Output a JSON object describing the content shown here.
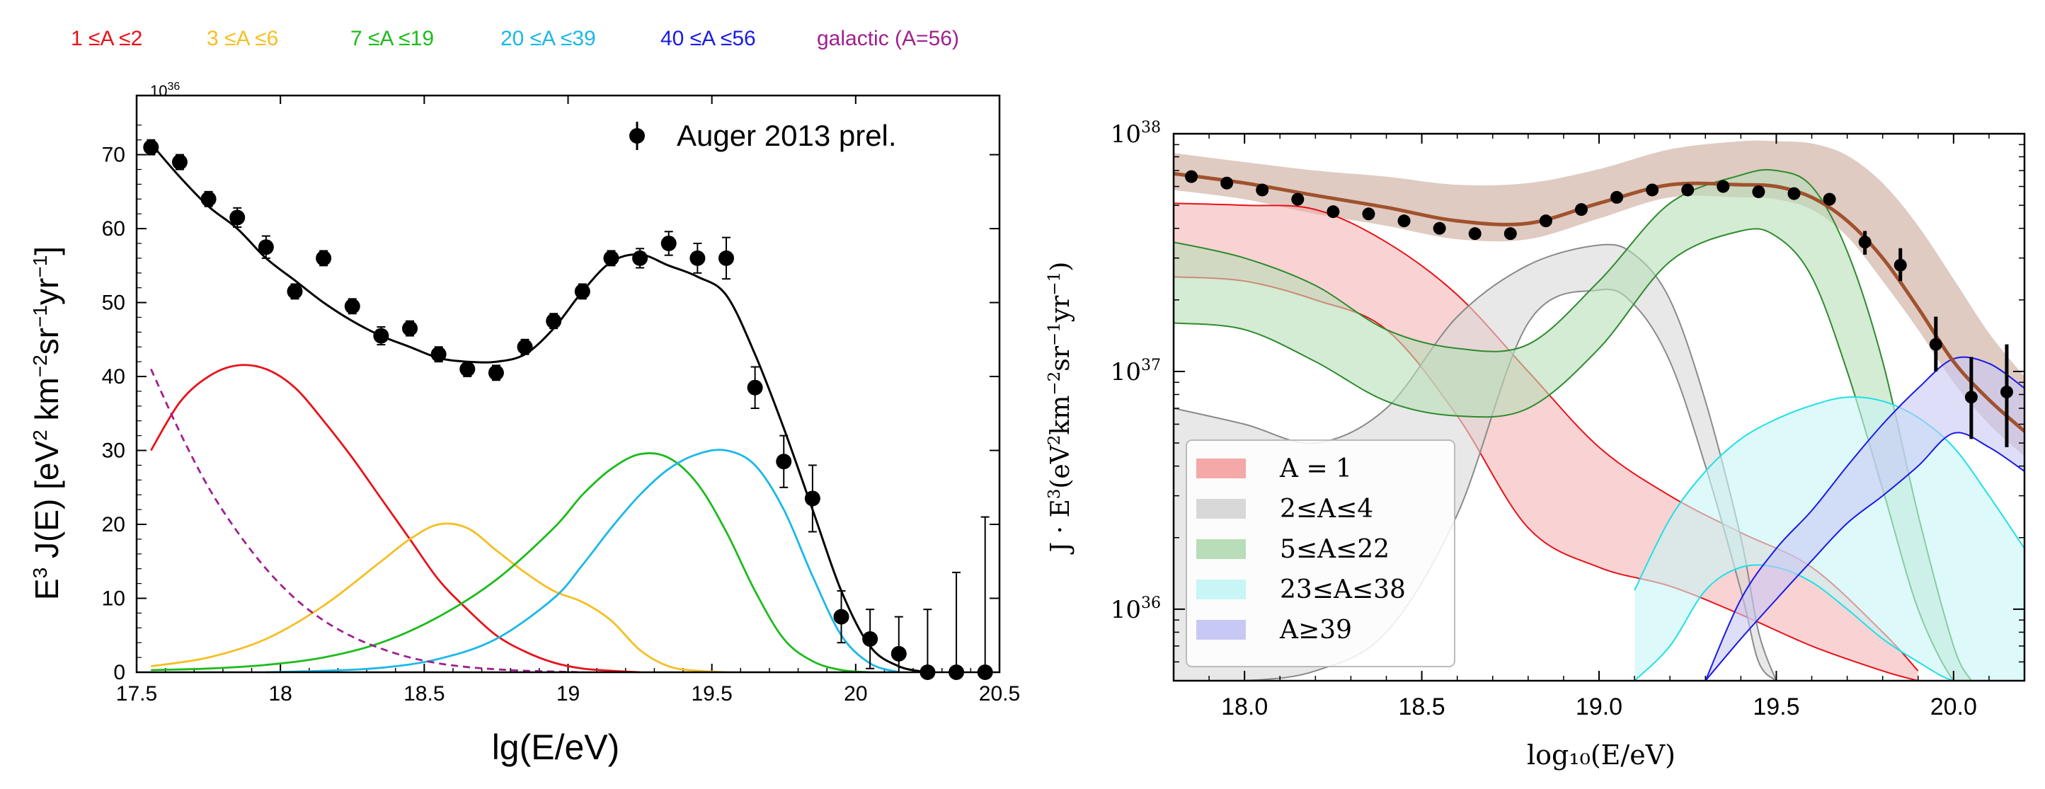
{
  "colors": {
    "red": "#e8121a",
    "yellow": "#f5bf22",
    "green": "#1dbb1d",
    "cyan": "#1cb8e8",
    "blue": "#1a1ae6",
    "purple": "#a0208e",
    "black": "#000000",
    "brown": "#a0522d"
  },
  "chart_data": [
    {
      "type": "line",
      "legend_top": [
        {
          "label": "1 ≤A ≤2",
          "color": "#e8121a"
        },
        {
          "label": "3 ≤A ≤6",
          "color": "#f5bf22"
        },
        {
          "label": "7 ≤A ≤19",
          "color": "#1dbb1d"
        },
        {
          "label": "20 ≤A ≤39",
          "color": "#1cb8e8"
        },
        {
          "label": "40 ≤A ≤56",
          "color": "#1a1ae6"
        },
        {
          "label": "galactic (A=56)",
          "color": "#a0208e"
        }
      ],
      "legend_in": "Auger 2013 prel.",
      "multiplier": "10",
      "multiplier_exp": "36",
      "ylabel": {
        "a": "E",
        "b": "3",
        "c": " J(E) [eV",
        "d": "2",
        "e": " km",
        "f": "−2",
        "g": "sr",
        "h": "−1",
        "i": "yr",
        "j": "−1",
        "k": "]"
      },
      "xlabel": "lg(E/eV)",
      "xlim": [
        17.5,
        20.5
      ],
      "ylim": [
        0,
        78
      ],
      "xticks": [
        17.5,
        18,
        18.5,
        19,
        19.5,
        20,
        20.5
      ],
      "xtick_labels": [
        "17.5",
        "18",
        "18.5",
        "19",
        "19.5",
        "20",
        "20.5"
      ],
      "yticks": [
        0,
        10,
        20,
        30,
        40,
        50,
        60,
        70
      ],
      "ytick_labels": [
        "0",
        "10",
        "20",
        "30",
        "40",
        "50",
        "60",
        "70"
      ],
      "data_points": [
        {
          "x": 17.55,
          "y": 71.0,
          "err": 1.0
        },
        {
          "x": 17.65,
          "y": 69.0,
          "err": 1.0
        },
        {
          "x": 17.75,
          "y": 64.0,
          "err": 1.0
        },
        {
          "x": 17.85,
          "y": 61.5,
          "err": 1.3
        },
        {
          "x": 17.95,
          "y": 57.5,
          "err": 1.5
        },
        {
          "x": 18.05,
          "y": 51.5,
          "err": 1.0
        },
        {
          "x": 18.15,
          "y": 56.0,
          "err": 1.0
        },
        {
          "x": 18.25,
          "y": 49.5,
          "err": 1.0
        },
        {
          "x": 18.35,
          "y": 45.5,
          "err": 1.2
        },
        {
          "x": 18.45,
          "y": 46.5,
          "err": 1.0
        },
        {
          "x": 18.55,
          "y": 43.0,
          "err": 1.0
        },
        {
          "x": 18.65,
          "y": 41.0,
          "err": 1.0
        },
        {
          "x": 18.75,
          "y": 40.5,
          "err": 1.0
        },
        {
          "x": 18.85,
          "y": 44.0,
          "err": 1.0
        },
        {
          "x": 18.95,
          "y": 47.5,
          "err": 1.0
        },
        {
          "x": 19.05,
          "y": 51.5,
          "err": 1.0
        },
        {
          "x": 19.15,
          "y": 56.0,
          "err": 1.0
        },
        {
          "x": 19.25,
          "y": 56.0,
          "err": 1.3
        },
        {
          "x": 19.35,
          "y": 58.0,
          "err": 1.6
        },
        {
          "x": 19.45,
          "y": 56.0,
          "err": 2.0
        },
        {
          "x": 19.55,
          "y": 56.0,
          "err": 2.8
        },
        {
          "x": 19.65,
          "y": 38.5,
          "err": 2.8
        },
        {
          "x": 19.75,
          "y": 28.5,
          "err": 3.5
        },
        {
          "x": 19.85,
          "y": 23.5,
          "err": 4.5
        },
        {
          "x": 19.95,
          "y": 7.5,
          "err": 3.5
        },
        {
          "x": 20.05,
          "y": 4.5,
          "err": 4.0
        },
        {
          "x": 20.15,
          "y": 2.5,
          "err": 5.0
        },
        {
          "x": 20.25,
          "y": 0.0,
          "err": 8.5
        },
        {
          "x": 20.35,
          "y": 0.0,
          "err": 13.5
        },
        {
          "x": 20.45,
          "y": 0.0,
          "err": 21.0
        }
      ],
      "series": [
        {
          "name": "total fit",
          "color": "#000000",
          "x": [
            17.55,
            17.65,
            17.75,
            17.85,
            17.95,
            18.05,
            18.15,
            18.25,
            18.35,
            18.45,
            18.55,
            18.65,
            18.75,
            18.85,
            18.95,
            19.05,
            19.15,
            19.25,
            19.35,
            19.45,
            19.55,
            19.65,
            19.75,
            19.85,
            19.95,
            20.05,
            20.15,
            20.25
          ],
          "y": [
            71.5,
            67.0,
            63.0,
            60.0,
            56.0,
            53.0,
            50.0,
            47.5,
            45.5,
            44.0,
            42.5,
            42.0,
            42.0,
            43.0,
            46.5,
            51.5,
            55.5,
            56.5,
            55.0,
            53.5,
            51.0,
            43.0,
            33.0,
            22.0,
            11.0,
            3.5,
            0.8,
            0.0
          ]
        },
        {
          "name": "1 ≤A ≤2",
          "color": "#e8121a",
          "x": [
            17.55,
            17.65,
            17.75,
            17.85,
            17.95,
            18.05,
            18.15,
            18.25,
            18.35,
            18.45,
            18.55,
            18.65,
            18.75,
            18.85,
            18.95,
            19.05,
            19.15,
            19.25
          ],
          "y": [
            30.0,
            36.5,
            40.0,
            41.5,
            41.0,
            38.5,
            34.0,
            29.0,
            23.5,
            18.0,
            12.5,
            8.5,
            5.0,
            2.8,
            1.3,
            0.5,
            0.2,
            0.0
          ]
        },
        {
          "name": "3 ≤A ≤6",
          "color": "#f5bf22",
          "x": [
            17.55,
            17.75,
            17.95,
            18.15,
            18.35,
            18.45,
            18.55,
            18.65,
            18.75,
            18.85,
            18.95,
            19.05,
            19.15,
            19.25,
            19.35,
            19.45,
            19.55
          ],
          "y": [
            0.8,
            2.0,
            4.5,
            9.0,
            15.0,
            18.0,
            20.0,
            19.5,
            16.5,
            13.5,
            11.0,
            9.5,
            7.0,
            3.0,
            0.8,
            0.2,
            0.0
          ]
        },
        {
          "name": "7 ≤A ≤19",
          "color": "#1dbb1d",
          "x": [
            17.55,
            17.75,
            17.95,
            18.15,
            18.35,
            18.55,
            18.75,
            18.95,
            19.05,
            19.15,
            19.25,
            19.35,
            19.45,
            19.55,
            19.65,
            19.75,
            19.85,
            19.95,
            20.05
          ],
          "y": [
            0.3,
            0.5,
            1.0,
            2.0,
            4.0,
            7.5,
            12.5,
            19.5,
            24.0,
            27.5,
            29.5,
            29.0,
            25.5,
            19.0,
            11.0,
            4.5,
            1.5,
            0.3,
            0.0
          ]
        },
        {
          "name": "20 ≤A ≤39",
          "color": "#1cb8e8",
          "x": [
            17.95,
            18.15,
            18.35,
            18.55,
            18.75,
            18.95,
            19.05,
            19.15,
            19.25,
            19.35,
            19.45,
            19.55,
            19.65,
            19.75,
            19.85,
            19.95,
            20.05,
            20.15
          ],
          "y": [
            0.0,
            0.2,
            0.6,
            1.8,
            4.5,
            10.0,
            14.5,
            19.5,
            24.0,
            27.5,
            29.5,
            30.0,
            28.0,
            22.0,
            13.0,
            5.0,
            1.2,
            0.0
          ]
        },
        {
          "name": "galactic (A=56)",
          "color": "#a0208e",
          "dashed": true,
          "x": [
            17.55,
            17.65,
            17.75,
            17.85,
            17.95,
            18.05,
            18.15,
            18.25,
            18.35,
            18.45,
            18.55,
            18.65,
            18.75,
            18.85,
            18.95,
            19.05
          ],
          "y": [
            41.0,
            32.5,
            25.0,
            19.0,
            14.0,
            10.0,
            7.0,
            4.8,
            3.2,
            2.0,
            1.2,
            0.7,
            0.4,
            0.2,
            0.1,
            0.0
          ]
        }
      ]
    },
    {
      "type": "line",
      "xlabel": "log₁₀(E/eV)",
      "ylabel": {
        "a": "J · E",
        "b": "3",
        "c": "(eV",
        "d": "2",
        "e": "km",
        "f": "−2",
        "g": "sr",
        "h": "−1",
        "i": "yr",
        "j": "−1",
        "k": ")"
      },
      "yscale": "log",
      "xlim": [
        17.8,
        20.2
      ],
      "ylim": [
        5e+35,
        1e+38
      ],
      "xticks": [
        18.0,
        18.5,
        19.0,
        19.5,
        20.0
      ],
      "xtick_labels": [
        "18.0",
        "18.5",
        "19.0",
        "19.5",
        "20.0"
      ],
      "ytick_labels": [
        {
          "base": "10",
          "exp": "36",
          "value": 1e+36
        },
        {
          "base": "10",
          "exp": "37",
          "value": 1e+37
        },
        {
          "base": "10",
          "exp": "38",
          "value": 1e+38
        }
      ],
      "legend": [
        {
          "label": "A = 1",
          "color": "#f08080"
        },
        {
          "label": "2≤A≤4",
          "color": "#9a9a9a"
        },
        {
          "label": "5≤A≤22",
          "color": "#2e8b2e"
        },
        {
          "label": "23≤A≤38",
          "color": "#40e0e0"
        },
        {
          "label": "A≥39",
          "color": "#6a6ae0"
        }
      ],
      "data_points": [
        {
          "x": 17.85,
          "y": 6.6e+37
        },
        {
          "x": 17.95,
          "y": 6.2e+37
        },
        {
          "x": 18.05,
          "y": 5.8e+37
        },
        {
          "x": 18.15,
          "y": 5.3e+37
        },
        {
          "x": 18.25,
          "y": 4.7e+37
        },
        {
          "x": 18.35,
          "y": 4.6e+37
        },
        {
          "x": 18.45,
          "y": 4.3e+37
        },
        {
          "x": 18.55,
          "y": 4e+37
        },
        {
          "x": 18.65,
          "y": 3.8e+37
        },
        {
          "x": 18.75,
          "y": 3.8e+37
        },
        {
          "x": 18.85,
          "y": 4.3e+37
        },
        {
          "x": 18.95,
          "y": 4.8e+37
        },
        {
          "x": 19.05,
          "y": 5.4e+37
        },
        {
          "x": 19.15,
          "y": 5.8e+37
        },
        {
          "x": 19.25,
          "y": 5.8e+37
        },
        {
          "x": 19.35,
          "y": 6e+37
        },
        {
          "x": 19.45,
          "y": 5.7e+37
        },
        {
          "x": 19.55,
          "y": 5.6e+37
        },
        {
          "x": 19.65,
          "y": 5.3e+37
        },
        {
          "x": 19.75,
          "y": 3.5e+37,
          "err": [
            3.1e+37,
            3.9e+37
          ]
        },
        {
          "x": 19.85,
          "y": 2.8e+37,
          "err": [
            2.4e+37,
            3.3e+37
          ]
        },
        {
          "x": 19.95,
          "y": 1.3e+37,
          "err": [
            1e+37,
            1.7e+37
          ]
        },
        {
          "x": 20.05,
          "y": 7.8e+36,
          "err": [
            5.2e+36,
            1.15e+37
          ]
        },
        {
          "x": 20.15,
          "y": 8.2e+36,
          "err": [
            4.8e+36,
            1.3e+37
          ]
        }
      ],
      "bands": [
        {
          "name": "total",
          "fill": "#c9a89a",
          "opacity": 0.6,
          "x": [
            17.8,
            18.0,
            18.2,
            18.4,
            18.6,
            18.8,
            19.0,
            19.2,
            19.4,
            19.5,
            19.6,
            19.7,
            19.8,
            19.9,
            20.0,
            20.1,
            20.2
          ],
          "lo": [
            5.8e+37,
            5.3e+37,
            4.6e+37,
            4.1e+37,
            3.6e+37,
            3.6e+37,
            4.4e+37,
            5.4e+37,
            5.4e+37,
            5.3e+37,
            4.8e+37,
            3.7e+37,
            2.4e+37,
            1.5e+37,
            9e+36,
            6e+36,
            4.4e+36
          ],
          "hi": [
            8.3e+37,
            7.6e+37,
            7e+37,
            6.6e+37,
            6.1e+37,
            6.2e+37,
            7.1e+37,
            8.6e+37,
            9.3e+37,
            9.3e+37,
            9.1e+37,
            8.1e+37,
            6.2e+37,
            4.1e+37,
            2.45e+37,
            1.45e+37,
            9.5e+36
          ]
        },
        {
          "name": "A = 1",
          "fill": "#f4a8a8",
          "stroke": "#e8121a",
          "opacity": 0.5,
          "x": [
            17.8,
            18.0,
            18.2,
            18.4,
            18.6,
            18.8,
            19.0,
            19.2,
            19.4,
            19.6,
            19.8,
            19.9
          ],
          "lo": [
            2.5e+37,
            2.4e+37,
            2e+37,
            1.5e+37,
            6.5e+36,
            2.2e+36,
            1.5e+36,
            1.25e+36,
            9.5e+35,
            7e+35,
            5.5e+35,
            5e+35
          ],
          "hi": [
            5.1e+37,
            5e+37,
            4.8e+37,
            3.5e+37,
            2.1e+37,
            1e+37,
            4.8e+36,
            3e+36,
            2.1e+36,
            1.5e+36,
            8e+35,
            5.5e+35
          ]
        },
        {
          "name": "2≤A≤4",
          "fill": "#d8d8d8",
          "stroke": "#8a8a8a",
          "opacity": 0.6,
          "x": [
            17.8,
            18.0,
            18.2,
            18.4,
            18.6,
            18.8,
            19.0,
            19.1,
            19.2,
            19.3,
            19.4,
            19.45,
            19.5
          ],
          "lo": [
            5e+35,
            5e+35,
            5.5e+35,
            8e+35,
            2.5e+36,
            1.6e+37,
            2.2e+37,
            1.9e+37,
            1.1e+37,
            4e+36,
            1.2e+36,
            6e+35,
            5e+35
          ],
          "hi": [
            7e+36,
            6e+36,
            5e+36,
            7e+36,
            1.7e+37,
            2.8e+37,
            3.4e+37,
            3.1e+37,
            2e+37,
            7.5e+36,
            2e+36,
            8e+35,
            5e+35
          ]
        },
        {
          "name": "5≤A≤22",
          "fill": "#b8ddb8",
          "stroke": "#2e8b2e",
          "opacity": 0.6,
          "x": [
            17.8,
            18.0,
            18.2,
            18.4,
            18.6,
            18.8,
            19.0,
            19.2,
            19.4,
            19.5,
            19.6,
            19.7,
            19.8,
            19.9,
            20.0,
            20.05
          ],
          "lo": [
            1.6e+37,
            1.5e+37,
            1.1e+37,
            7.5e+36,
            6.5e+36,
            7e+36,
            1.25e+37,
            2.9e+37,
            3.9e+37,
            3.7e+37,
            2.5e+37,
            1e+37,
            3.2e+36,
            1e+36,
            5e+35,
            5e+35
          ],
          "hi": [
            3.5e+37,
            3e+37,
            2.3e+37,
            1.5e+37,
            1.25e+37,
            1.3e+37,
            2.4e+37,
            5.1e+37,
            6.7e+37,
            7e+37,
            6e+37,
            3.2e+37,
            1.1e+37,
            2.5e+36,
            7e+35,
            5e+35
          ]
        },
        {
          "name": "23≤A≤38",
          "fill": "#c8f5f5",
          "stroke": "#1ee0e8",
          "opacity": 0.6,
          "x": [
            19.1,
            19.2,
            19.3,
            19.4,
            19.5,
            19.6,
            19.7,
            19.8,
            19.9,
            20.0,
            20.1,
            20.2
          ],
          "lo": [
            5e+35,
            7e+35,
            1.2e+36,
            1.5e+36,
            1.5e+36,
            1.3e+36,
            1e+36,
            7.5e+35,
            6e+35,
            5e+35,
            5e+35,
            5e+35
          ],
          "hi": [
            1.2e+36,
            2.4e+36,
            3.8e+36,
            5.2e+36,
            6.3e+36,
            7.2e+36,
            7.8e+36,
            7.5e+36,
            6.4e+36,
            4.8e+36,
            3e+36,
            1.8e+36
          ]
        },
        {
          "name": "A≥39",
          "fill": "#c8c8f5",
          "stroke": "#1a1ae6",
          "opacity": 0.6,
          "x": [
            19.3,
            19.4,
            19.5,
            19.6,
            19.7,
            19.8,
            19.9,
            20.0,
            20.1,
            20.2
          ],
          "lo": [
            5e+35,
            7.5e+35,
            1.1e+36,
            1.6e+36,
            2.3e+36,
            3e+36,
            4e+36,
            5.5e+36,
            4.8e+36,
            3.8e+36
          ],
          "hi": [
            5e+35,
            1.1e+36,
            1.8e+36,
            2.6e+36,
            4e+36,
            6e+36,
            8.5e+36,
            1.13e+37,
            1.08e+37,
            8.5e+36
          ]
        }
      ],
      "series": [
        {
          "name": "total fit",
          "color": "#a0522d",
          "x": [
            17.8,
            18.0,
            18.2,
            18.4,
            18.6,
            18.8,
            19.0,
            19.2,
            19.4,
            19.5,
            19.6,
            19.7,
            19.8,
            19.9,
            20.0,
            20.1,
            20.2
          ],
          "y": [
            6.8e+37,
            6.2e+37,
            5.5e+37,
            4.9e+37,
            4.3e+37,
            4.2e+37,
            5.1e+37,
            6.1e+37,
            6.1e+37,
            6e+37,
            5.4e+37,
            4.3e+37,
            3e+37,
            1.85e+37,
            1.1e+37,
            7.6e+36,
            5.6e+36
          ]
        }
      ]
    }
  ]
}
